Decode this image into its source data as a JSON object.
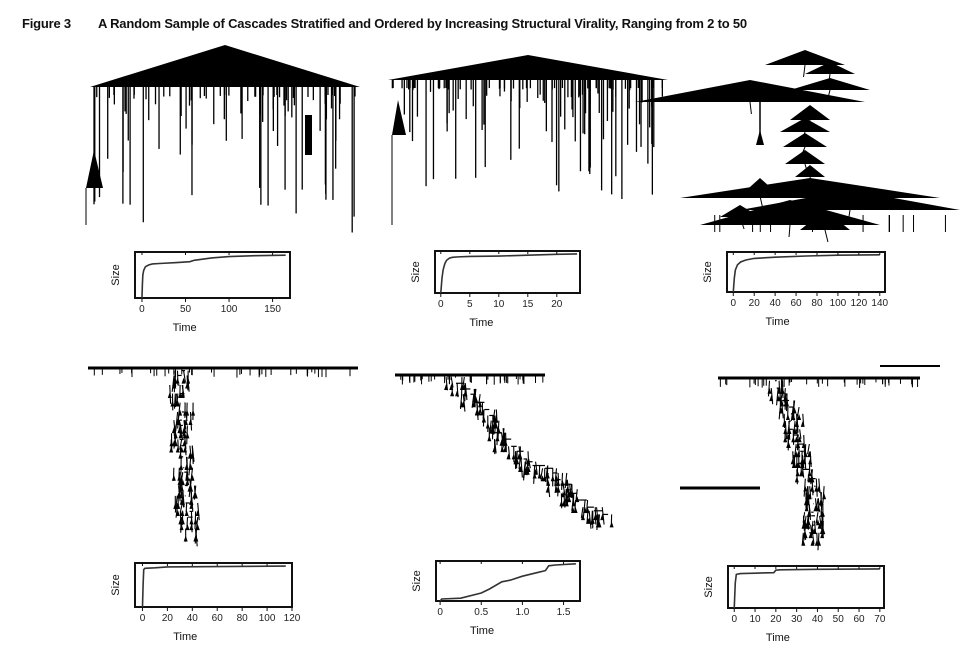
{
  "figure": {
    "label": "Figure 3",
    "caption": "A Random Sample of Cascades Stratified and Ordered by Increasing Structural Virality, Ranging from 2 to 50"
  },
  "chart_data": [
    {
      "type": "line",
      "position": "top-left",
      "xlabel": "Time",
      "ylabel": "Size",
      "xlim": [
        -8,
        170
      ],
      "xticks": [
        0,
        50,
        100,
        150
      ],
      "x": [
        0,
        0.5,
        1,
        2,
        4,
        8,
        12,
        20,
        40,
        55,
        60,
        80,
        100,
        130,
        165
      ],
      "y": [
        0,
        0.3,
        0.5,
        0.6,
        0.68,
        0.72,
        0.74,
        0.75,
        0.77,
        0.79,
        0.82,
        0.87,
        0.9,
        0.92,
        0.93
      ]
    },
    {
      "type": "line",
      "position": "top-center",
      "xlabel": "Time",
      "ylabel": "Size",
      "xlim": [
        -1,
        24
      ],
      "xticks": [
        0,
        5,
        10,
        15,
        20
      ],
      "x": [
        0,
        0.2,
        0.4,
        0.7,
        1,
        1.5,
        2,
        3,
        5,
        10,
        15,
        20,
        23.5
      ],
      "y": [
        0,
        0.35,
        0.55,
        0.7,
        0.78,
        0.83,
        0.85,
        0.86,
        0.87,
        0.88,
        0.9,
        0.92,
        0.93
      ]
    },
    {
      "type": "line",
      "position": "top-right",
      "xlabel": "Time",
      "ylabel": "Size",
      "xlim": [
        -6,
        145
      ],
      "xticks": [
        0,
        20,
        40,
        60,
        80,
        100,
        120,
        140
      ],
      "x": [
        0,
        1,
        2,
        4,
        7,
        12,
        20,
        40,
        70,
        100,
        140
      ],
      "y": [
        0,
        0.35,
        0.55,
        0.68,
        0.75,
        0.8,
        0.84,
        0.87,
        0.9,
        0.92,
        0.93
      ]
    },
    {
      "type": "line",
      "position": "bottom-left",
      "xlabel": "Time",
      "ylabel": "Size",
      "xlim": [
        -6,
        120
      ],
      "xticks": [
        0,
        20,
        40,
        60,
        80,
        100,
        120
      ],
      "x": [
        0,
        0.5,
        1,
        2,
        10,
        20,
        60,
        115
      ],
      "y": [
        0,
        0.5,
        0.85,
        0.88,
        0.89,
        0.91,
        0.92,
        0.93
      ]
    },
    {
      "type": "line",
      "position": "bottom-center",
      "xlabel": "Time",
      "ylabel": "Size",
      "xlim": [
        -0.05,
        1.7
      ],
      "xticks": [
        0,
        0.5,
        1.0,
        1.5
      ],
      "xticklabels": [
        "0",
        "0.5",
        "1.0",
        "1.5"
      ],
      "x": [
        0,
        0.02,
        0.25,
        0.5,
        0.6,
        0.75,
        0.85,
        1.0,
        1.2,
        1.28,
        1.32,
        1.4,
        1.65
      ],
      "y": [
        0,
        0.05,
        0.07,
        0.2,
        0.3,
        0.48,
        0.52,
        0.62,
        0.72,
        0.76,
        0.88,
        0.9,
        0.93
      ]
    },
    {
      "type": "line",
      "position": "bottom-right",
      "xlabel": "Time",
      "ylabel": "Size",
      "xlim": [
        -3,
        72
      ],
      "xticks": [
        0,
        10,
        20,
        30,
        40,
        50,
        60,
        70
      ],
      "x": [
        0,
        0.5,
        1,
        3,
        10,
        19,
        20,
        22,
        40,
        70
      ],
      "y": [
        0,
        0.6,
        0.8,
        0.82,
        0.83,
        0.84,
        0.9,
        0.91,
        0.92,
        0.93
      ]
    }
  ],
  "colors": {
    "ink": "#000000",
    "curve": "#333333",
    "frame": "#111111"
  }
}
